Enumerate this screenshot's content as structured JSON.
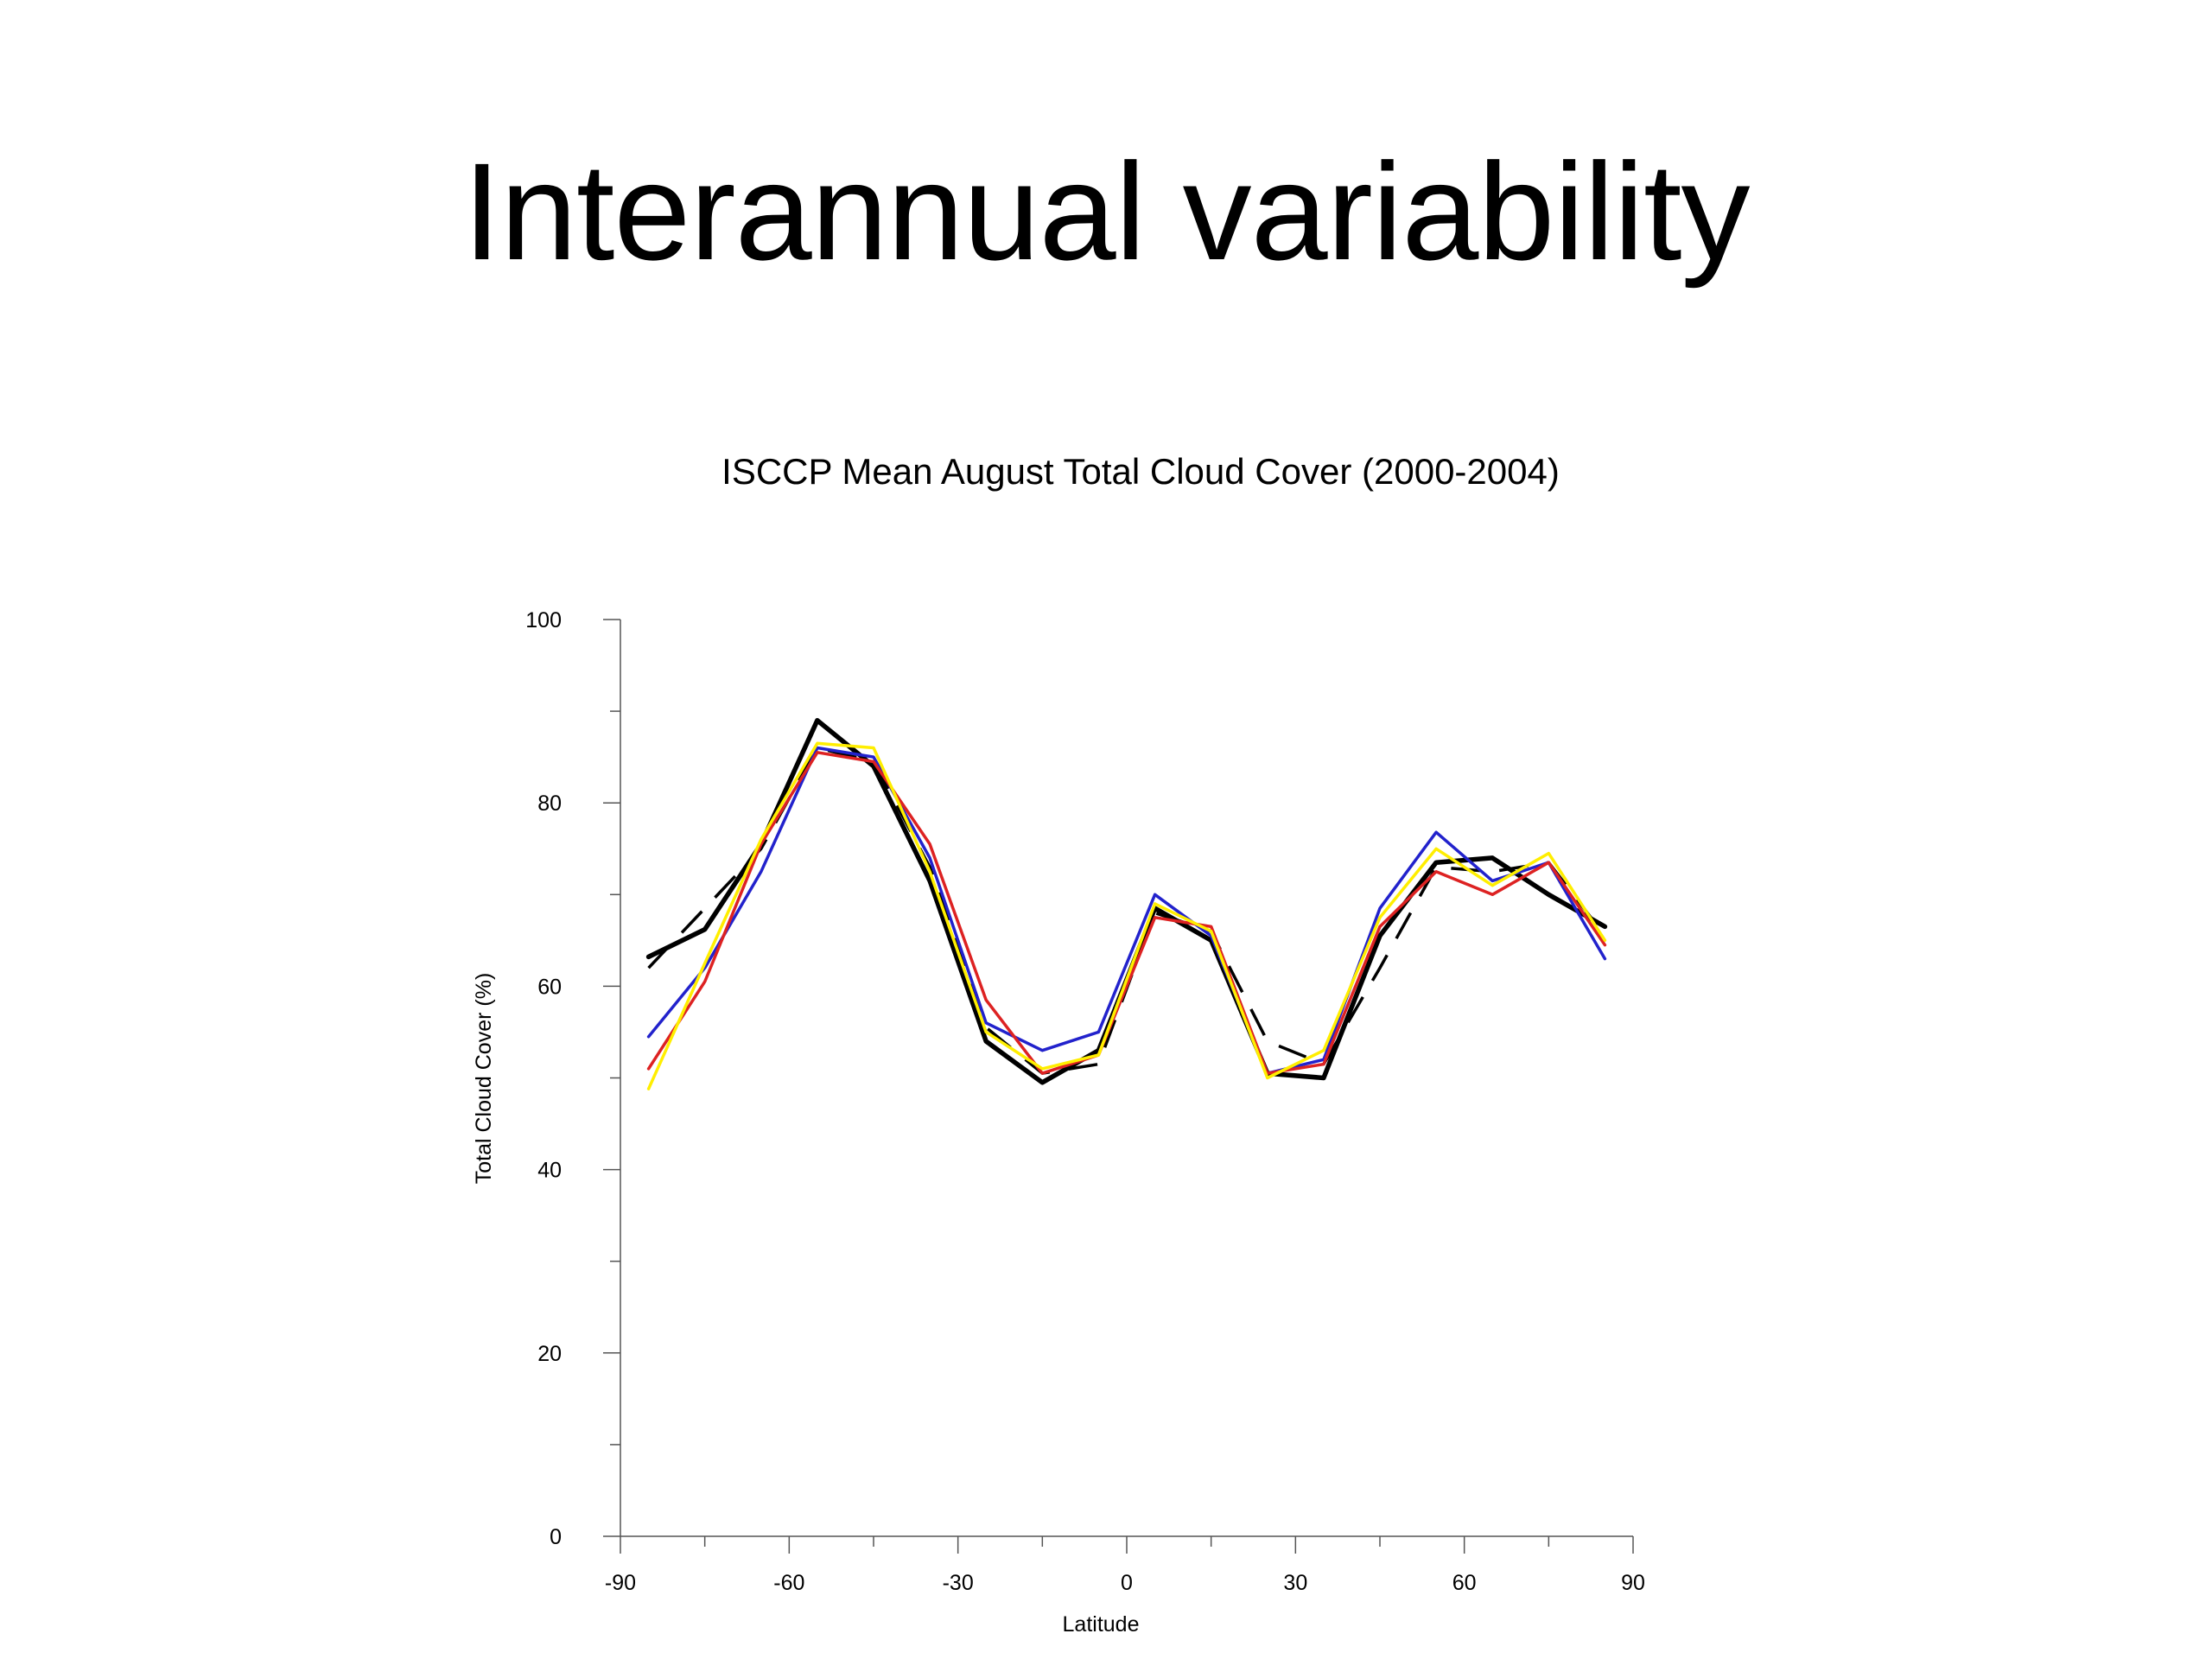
{
  "slide": {
    "title": "Interannual variability"
  },
  "chart_data": {
    "type": "line",
    "title": "ISCCP Mean August Total Cloud Cover (2000-2004)",
    "xlabel": "Latitude",
    "ylabel": "Total Cloud Cover (%)",
    "xlim": [
      -90,
      90
    ],
    "ylim": [
      0,
      100
    ],
    "xticks": [
      -90,
      -60,
      -30,
      0,
      30,
      60,
      90
    ],
    "yticks": [
      0,
      20,
      40,
      60,
      80,
      100
    ],
    "x": [
      -85,
      -75,
      -65,
      -55,
      -45,
      -35,
      -25,
      -15,
      -5,
      5,
      15,
      25,
      35,
      45,
      55,
      65,
      75,
      85
    ],
    "grid": false,
    "series": [
      {
        "color": "#000000",
        "style": "solid-thick",
        "values": [
          63.2,
          66.2,
          75.5,
          89,
          84,
          71.5,
          54,
          49.5,
          53,
          68.5,
          65,
          50.5,
          50,
          65.5,
          73.5,
          74,
          70,
          66.5
        ]
      },
      {
        "color": "#000000",
        "style": "dashed",
        "values": [
          62,
          68.5,
          75,
          86,
          84.5,
          73,
          55.5,
          50.5,
          51.5,
          68,
          66,
          54,
          51.5,
          62,
          73,
          72.5,
          73.5,
          65.5
        ]
      },
      {
        "color": "#2222cc",
        "style": "solid",
        "values": [
          54.5,
          62,
          72.5,
          86,
          85,
          74,
          56,
          53,
          55,
          70,
          65.5,
          50.5,
          52,
          68.5,
          76.8,
          71.5,
          73.5,
          63
        ]
      },
      {
        "color": "#dd2222",
        "style": "solid",
        "values": [
          51,
          60.5,
          75.5,
          85.5,
          84.5,
          75.5,
          58.5,
          50.5,
          52.5,
          67.5,
          66.5,
          50.5,
          51.5,
          66.5,
          72.5,
          70,
          73.5,
          64.5
        ]
      },
      {
        "color": "#ffee00",
        "style": "solid",
        "values": [
          48.8,
          62.5,
          76,
          86.5,
          86,
          72.5,
          55,
          51,
          52.5,
          69,
          66,
          50,
          53,
          67.5,
          75,
          71,
          74.5,
          65
        ]
      }
    ]
  }
}
